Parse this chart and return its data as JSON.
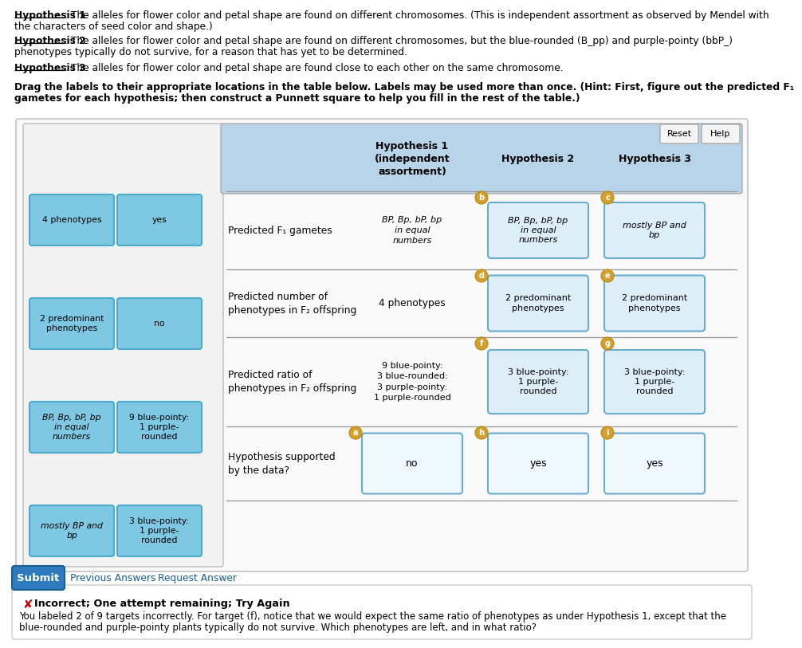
{
  "bg_color": "#ffffff",
  "label_box_color": "#7ec8e3",
  "table_header_color": "#b8d4e8",
  "answer_box_color_blue": "#ddeef8",
  "answer_box_color_white": "#f0f8ff",
  "left_labels_col1": [
    "mostly BP and\nbp",
    "BP, Bp, bP, bp\nin equal\nnumbers",
    "2 predominant\nphenotypes",
    "4 phenotypes"
  ],
  "left_labels_col2": [
    "3 blue-pointy:\n1 purple-\nrounded",
    "9 blue-pointy:\n1 purple-\nrounded",
    "no",
    "yes"
  ],
  "col_headers": [
    "",
    "Hypothesis 1\n(independent\nassortment)",
    "Hypothesis 2",
    "Hypothesis 3"
  ],
  "row_labels": [
    "Predicted F₁ gametes",
    "Predicted number of\nphenotypes in F₂ offspring",
    "Predicted ratio of\nphenotypes in F₂ offspring",
    "Hypothesis supported\nby the data?"
  ],
  "h1_answers": [
    "BP, Bp, bP, bp\nin equal\nnumbers",
    "4 phenotypes",
    "9 blue-pointy:\n3 blue-rounded:\n3 purple-pointy:\n1 purple-rounded",
    "no"
  ],
  "h2_answers": [
    "BP, Bp, bP, bp\nin equal\nnumbers",
    "2 predominant\nphenotypes",
    "3 blue-pointy:\n1 purple-\nrounded",
    "yes"
  ],
  "h3_answers": [
    "mostly BP and\nbp",
    "2 predominant\nphenotypes",
    "3 blue-pointy:\n1 purple-\nrounded",
    "yes"
  ],
  "circle_labels_order": [
    "b",
    "c",
    "d",
    "e",
    "f",
    "g",
    "a",
    "h",
    "i"
  ],
  "circle_facecolor": "#d4a030",
  "circle_edgecolor": "#b8860b",
  "submit_color": "#2e7bbf",
  "error_bg": "#ffffff",
  "error_border": "#dddddd",
  "hyp1_bold": "Hypothesis 1",
  "hyp1_rest": ": The alleles for flower color and petal shape are found on different chromosomes. (This is independent assortment as observed by Mendel with",
  "hyp1_rest2": "the characters of seed color and shape.)",
  "hyp2_bold": "Hypothesis 2",
  "hyp2_rest": ": The alleles for flower color and petal shape are found on different chromosomes, but the blue-rounded (B_pp) and purple-pointy (bbP_)",
  "hyp2_rest2": "phenotypes typically do not survive, for a reason that has yet to be determined.",
  "hyp3_bold": "Hypothesis 3",
  "hyp3_rest": ": The alleles for flower color and petal shape are found close to each other on the same chromosome.",
  "drag_line1": "Drag the labels to their appropriate locations in the table below. Labels may be used more than once. (Hint: First, figure out the predicted F₁",
  "drag_line2": "gametes for each hypothesis; then construct a Punnett square to help you fill in the rest of the table.)",
  "submit_label": "Submit",
  "prev_answers": "Previous Answers",
  "req_answer": "Request Answer",
  "error_title": "Incorrect; One attempt remaining; Try Again",
  "error_line1": "You labeled 2 of 9 targets incorrectly. For target (f), notice that we would expect the same ratio of phenotypes as under Hypothesis 1, except that the",
  "error_line2": "blue-rounded and purple-pointy plants typically do not survive. Which phenotypes are left, and in what ratio?"
}
